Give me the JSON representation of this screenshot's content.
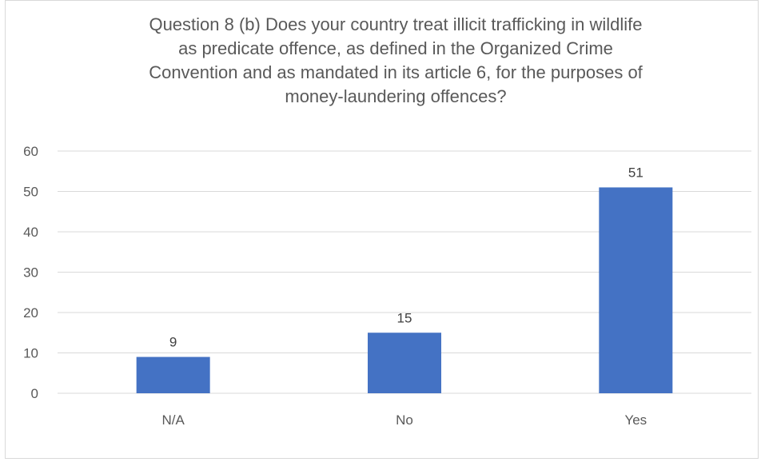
{
  "chart_data": {
    "type": "bar",
    "title_lines": [
      "Question 8 (b) Does your country treat illicit trafficking in wildlife",
      "as predicate offence, as defined in the Organized Crime",
      "Convention and as mandated in its article 6, for the purposes of",
      "money-laundering offences?"
    ],
    "categories": [
      "N/A",
      "No",
      "Yes"
    ],
    "values": [
      9,
      15,
      51
    ],
    "data_labels": [
      "9",
      "15",
      "51"
    ],
    "xlabel": "",
    "ylabel": "",
    "ylim": [
      0,
      60
    ],
    "yticks": [
      "0",
      "10",
      "20",
      "30",
      "40",
      "50",
      "60"
    ],
    "grid": true,
    "legend": "none",
    "bar_color": "#4472c4",
    "grid_color": "#d9d9d9"
  }
}
